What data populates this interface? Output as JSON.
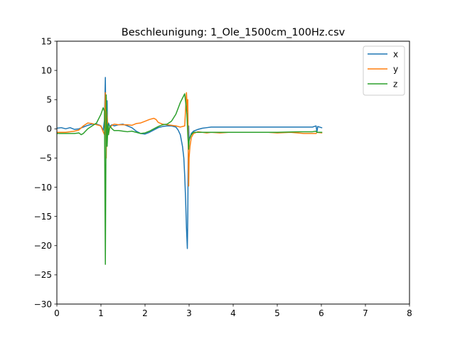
{
  "chart_data": {
    "type": "line",
    "title": "Beschleunigung: 1_Ole_1500cm_100Hz.csv",
    "xlabel": "",
    "ylabel": "",
    "xlim": [
      0,
      8
    ],
    "ylim": [
      -30,
      15
    ],
    "xticks": [
      0,
      1,
      2,
      3,
      4,
      5,
      6,
      7,
      8
    ],
    "yticks": [
      -30,
      -25,
      -20,
      -15,
      -10,
      -5,
      0,
      5,
      10,
      15
    ],
    "grid": false,
    "legend_position": "top-right",
    "series": [
      {
        "name": "x",
        "color": "#1f77b4",
        "points": [
          [
            0.0,
            0.1
          ],
          [
            0.1,
            0.2
          ],
          [
            0.2,
            0.0
          ],
          [
            0.3,
            0.2
          ],
          [
            0.4,
            -0.1
          ],
          [
            0.5,
            0.0
          ],
          [
            0.6,
            0.3
          ],
          [
            0.7,
            0.6
          ],
          [
            0.8,
            0.8
          ],
          [
            0.9,
            0.8
          ],
          [
            0.98,
            0.6
          ],
          [
            1.02,
            0.2
          ],
          [
            1.05,
            -0.3
          ],
          [
            1.08,
            1.5
          ],
          [
            1.1,
            8.8
          ],
          [
            1.11,
            0.5
          ],
          [
            1.12,
            -2.0
          ],
          [
            1.14,
            4.8
          ],
          [
            1.15,
            -1.0
          ],
          [
            1.17,
            1.0
          ],
          [
            1.2,
            0.4
          ],
          [
            1.25,
            0.7
          ],
          [
            1.3,
            0.5
          ],
          [
            1.4,
            0.7
          ],
          [
            1.5,
            0.8
          ],
          [
            1.6,
            0.5
          ],
          [
            1.7,
            0.2
          ],
          [
            1.8,
            -0.4
          ],
          [
            1.9,
            -0.8
          ],
          [
            2.0,
            -0.9
          ],
          [
            2.1,
            -0.6
          ],
          [
            2.2,
            -0.2
          ],
          [
            2.3,
            0.2
          ],
          [
            2.4,
            0.4
          ],
          [
            2.5,
            0.5
          ],
          [
            2.6,
            0.5
          ],
          [
            2.7,
            0.3
          ],
          [
            2.75,
            -0.2
          ],
          [
            2.8,
            -1.0
          ],
          [
            2.85,
            -3.0
          ],
          [
            2.88,
            -5.0
          ],
          [
            2.9,
            -8.0
          ],
          [
            2.92,
            -12.0
          ],
          [
            2.94,
            -17.0
          ],
          [
            2.96,
            -20.5
          ],
          [
            2.97,
            -15.0
          ],
          [
            2.98,
            -4.0
          ],
          [
            2.99,
            0.5
          ],
          [
            3.0,
            -2.0
          ],
          [
            3.02,
            -1.5
          ],
          [
            3.05,
            -0.8
          ],
          [
            3.1,
            -0.4
          ],
          [
            3.2,
            -0.1
          ],
          [
            3.3,
            0.1
          ],
          [
            3.4,
            0.2
          ],
          [
            3.5,
            0.3
          ],
          [
            3.6,
            0.3
          ],
          [
            3.8,
            0.3
          ],
          [
            4.0,
            0.3
          ],
          [
            4.5,
            0.3
          ],
          [
            5.0,
            0.3
          ],
          [
            5.5,
            0.3
          ],
          [
            5.8,
            0.3
          ],
          [
            5.88,
            0.5
          ],
          [
            5.9,
            -0.5
          ],
          [
            5.92,
            0.4
          ],
          [
            6.0,
            0.2
          ],
          [
            6.02,
            0.2
          ]
        ]
      },
      {
        "name": "y",
        "color": "#ff7f0e",
        "points": [
          [
            0.0,
            -0.6
          ],
          [
            0.2,
            -0.6
          ],
          [
            0.4,
            -0.4
          ],
          [
            0.5,
            -0.2
          ],
          [
            0.6,
            0.5
          ],
          [
            0.7,
            1.0
          ],
          [
            0.8,
            0.9
          ],
          [
            0.9,
            0.7
          ],
          [
            1.0,
            0.5
          ],
          [
            1.05,
            -0.5
          ],
          [
            1.08,
            -1.0
          ],
          [
            1.1,
            6.2
          ],
          [
            1.11,
            -1.0
          ],
          [
            1.12,
            -5.0
          ],
          [
            1.13,
            3.0
          ],
          [
            1.15,
            1.0
          ],
          [
            1.17,
            -1.0
          ],
          [
            1.2,
            0.2
          ],
          [
            1.25,
            0.6
          ],
          [
            1.3,
            0.8
          ],
          [
            1.4,
            0.7
          ],
          [
            1.5,
            0.7
          ],
          [
            1.6,
            0.7
          ],
          [
            1.7,
            0.6
          ],
          [
            1.8,
            0.9
          ],
          [
            1.9,
            1.0
          ],
          [
            2.0,
            1.3
          ],
          [
            2.1,
            1.6
          ],
          [
            2.2,
            1.8
          ],
          [
            2.25,
            1.6
          ],
          [
            2.3,
            1.1
          ],
          [
            2.4,
            0.8
          ],
          [
            2.5,
            0.7
          ],
          [
            2.6,
            0.6
          ],
          [
            2.7,
            0.5
          ],
          [
            2.8,
            0.3
          ],
          [
            2.9,
            0.5
          ],
          [
            2.94,
            6.2
          ],
          [
            2.96,
            3.0
          ],
          [
            2.97,
            5.0
          ],
          [
            2.98,
            -3.0
          ],
          [
            2.99,
            -9.8
          ],
          [
            3.0,
            -5.0
          ],
          [
            3.02,
            -3.0
          ],
          [
            3.05,
            -1.5
          ],
          [
            3.1,
            -0.8
          ],
          [
            3.2,
            -0.5
          ],
          [
            3.3,
            -0.6
          ],
          [
            3.4,
            -0.7
          ],
          [
            3.5,
            -0.6
          ],
          [
            3.7,
            -0.7
          ],
          [
            3.9,
            -0.6
          ],
          [
            4.2,
            -0.6
          ],
          [
            4.5,
            -0.6
          ],
          [
            4.8,
            -0.6
          ],
          [
            5.0,
            -0.7
          ],
          [
            5.3,
            -0.6
          ],
          [
            5.6,
            -0.8
          ],
          [
            5.88,
            -0.8
          ],
          [
            5.9,
            -0.6
          ],
          [
            6.02,
            -0.7
          ]
        ]
      },
      {
        "name": "z",
        "color": "#2ca02c",
        "points": [
          [
            0.0,
            -0.8
          ],
          [
            0.2,
            -0.8
          ],
          [
            0.4,
            -0.8
          ],
          [
            0.5,
            -0.7
          ],
          [
            0.55,
            -1.0
          ],
          [
            0.6,
            -0.8
          ],
          [
            0.7,
            0.0
          ],
          [
            0.8,
            0.5
          ],
          [
            0.9,
            1.0
          ],
          [
            1.0,
            2.5
          ],
          [
            1.05,
            3.6
          ],
          [
            1.08,
            3.0
          ],
          [
            1.1,
            -23.2
          ],
          [
            1.11,
            -8.0
          ],
          [
            1.12,
            5.8
          ],
          [
            1.14,
            -3.0
          ],
          [
            1.16,
            0.8
          ],
          [
            1.17,
            -1.0
          ],
          [
            1.2,
            0.5
          ],
          [
            1.25,
            0.0
          ],
          [
            1.3,
            -0.3
          ],
          [
            1.4,
            -0.3
          ],
          [
            1.5,
            -0.4
          ],
          [
            1.6,
            -0.5
          ],
          [
            1.7,
            -0.4
          ],
          [
            1.8,
            -0.6
          ],
          [
            1.9,
            -0.8
          ],
          [
            2.0,
            -0.7
          ],
          [
            2.1,
            -0.4
          ],
          [
            2.2,
            0.0
          ],
          [
            2.3,
            0.4
          ],
          [
            2.4,
            0.7
          ],
          [
            2.5,
            0.8
          ],
          [
            2.6,
            1.3
          ],
          [
            2.7,
            2.5
          ],
          [
            2.8,
            4.5
          ],
          [
            2.9,
            6.0
          ],
          [
            2.93,
            4.0
          ],
          [
            2.95,
            2.5
          ],
          [
            2.97,
            -1.0
          ],
          [
            2.99,
            -3.5
          ],
          [
            3.0,
            -2.0
          ],
          [
            3.02,
            -1.5
          ],
          [
            3.05,
            -1.0
          ],
          [
            3.1,
            -0.6
          ],
          [
            3.2,
            -0.6
          ],
          [
            3.3,
            -0.6
          ],
          [
            3.5,
            -0.6
          ],
          [
            3.8,
            -0.6
          ],
          [
            4.0,
            -0.6
          ],
          [
            4.5,
            -0.6
          ],
          [
            5.0,
            -0.6
          ],
          [
            5.5,
            -0.5
          ],
          [
            5.8,
            -0.5
          ],
          [
            5.88,
            -0.4
          ],
          [
            5.9,
            -0.6
          ],
          [
            6.02,
            -0.6
          ]
        ]
      }
    ]
  }
}
